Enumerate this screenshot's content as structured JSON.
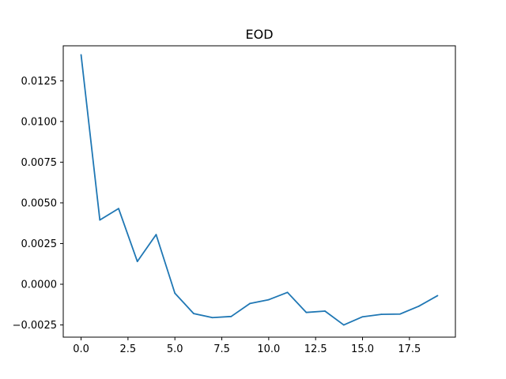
{
  "chart_data": {
    "type": "line",
    "title": "EOD",
    "xlabel": "",
    "ylabel": "",
    "xlim": [
      -0.95,
      19.95
    ],
    "ylim": [
      -0.00325,
      0.01465
    ],
    "grid": false,
    "xticks": [
      0,
      2.5,
      5,
      7.5,
      10,
      12.5,
      15,
      17.5
    ],
    "xtick_labels": [
      "0.0",
      "2.5",
      "5.0",
      "7.5",
      "10.0",
      "12.5",
      "15.0",
      "17.5"
    ],
    "yticks": [
      -0.0025,
      0,
      0.0025,
      0.005,
      0.0075,
      0.01,
      0.0125
    ],
    "ytick_labels": [
      "−0.0025",
      "0.0000",
      "0.0025",
      "0.0050",
      "0.0075",
      "0.0100",
      "0.0125"
    ],
    "x": [
      0,
      1,
      2,
      3,
      4,
      5,
      6,
      7,
      8,
      9,
      10,
      11,
      12,
      13,
      14,
      15,
      16,
      17,
      18,
      19
    ],
    "series": [
      {
        "color": "#1f77b4",
        "values": [
          0.0141,
          0.00395,
          0.00465,
          0.0014,
          0.00305,
          -0.00055,
          -0.0018,
          -0.00205,
          -0.00198,
          -0.00118,
          -0.00095,
          -0.0005,
          -0.00173,
          -0.00165,
          -0.0025,
          -0.002,
          -0.00185,
          -0.00183,
          -0.00135,
          -0.0007
        ]
      }
    ]
  }
}
